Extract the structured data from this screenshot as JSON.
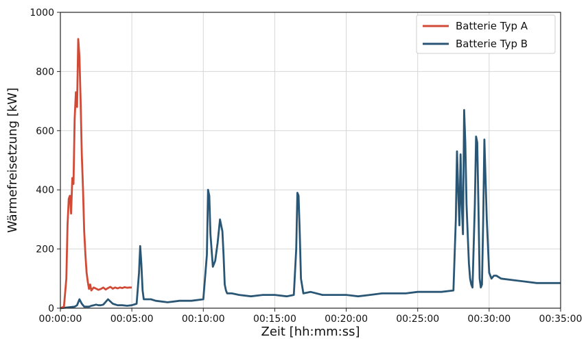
{
  "chart_data": {
    "type": "line",
    "title": "",
    "xlabel": "Zeit [hh:mm:ss]",
    "ylabel": "Wärmefreisetzung  [kW]",
    "x_unit": "seconds",
    "xlim": [
      0,
      2100
    ],
    "ylim": [
      0,
      1000
    ],
    "x_ticks": [
      0,
      300,
      600,
      900,
      1200,
      1500,
      1800,
      2100
    ],
    "x_tick_labels": [
      "00:00:00",
      "00:05:00",
      "00:10:00",
      "00:15:00",
      "00:20:00",
      "00:25:00",
      "00:30:00",
      "00:35:00"
    ],
    "y_ticks": [
      0,
      200,
      400,
      600,
      800,
      1000
    ],
    "y_tick_labels": [
      "0",
      "200",
      "400",
      "600",
      "800",
      "1000"
    ],
    "grid": true,
    "legend_position": "top-right",
    "series": [
      {
        "name": "Batterie Typ A",
        "color": "#d14a36",
        "x": [
          0,
          15,
          25,
          30,
          35,
          40,
          45,
          50,
          55,
          60,
          65,
          70,
          75,
          80,
          85,
          90,
          95,
          100,
          105,
          110,
          115,
          120,
          125,
          130,
          135,
          140,
          145,
          150,
          160,
          170,
          180,
          190,
          200,
          210,
          220,
          230,
          240,
          250,
          260,
          270,
          280,
          290,
          300
        ],
        "y": [
          0,
          5,
          100,
          280,
          370,
          380,
          320,
          440,
          420,
          640,
          730,
          680,
          910,
          850,
          700,
          520,
          400,
          260,
          180,
          120,
          90,
          65,
          80,
          60,
          65,
          70,
          68,
          66,
          62,
          65,
          70,
          63,
          68,
          72,
          66,
          70,
          67,
          70,
          68,
          71,
          69,
          70,
          70
        ]
      },
      {
        "name": "Batterie Typ B",
        "color": "#2a5675",
        "x": [
          0,
          60,
          70,
          80,
          90,
          100,
          120,
          130,
          140,
          150,
          160,
          170,
          180,
          200,
          220,
          240,
          260,
          280,
          300,
          320,
          330,
          335,
          340,
          345,
          350,
          360,
          380,
          400,
          450,
          500,
          550,
          600,
          615,
          620,
          625,
          630,
          640,
          650,
          660,
          670,
          680,
          685,
          690,
          695,
          700,
          720,
          750,
          800,
          850,
          900,
          950,
          980,
          990,
          995,
          1000,
          1005,
          1010,
          1020,
          1050,
          1100,
          1150,
          1200,
          1250,
          1300,
          1350,
          1400,
          1450,
          1500,
          1550,
          1600,
          1650,
          1660,
          1665,
          1670,
          1675,
          1680,
          1685,
          1690,
          1695,
          1700,
          1705,
          1710,
          1715,
          1720,
          1725,
          1730,
          1740,
          1745,
          1750,
          1755,
          1760,
          1765,
          1770,
          1775,
          1780,
          1790,
          1800,
          1810,
          1820,
          1830,
          1850,
          1900,
          1950,
          2000,
          2050,
          2100
        ],
        "y": [
          0,
          5,
          10,
          30,
          15,
          5,
          5,
          8,
          10,
          12,
          10,
          10,
          12,
          30,
          15,
          10,
          10,
          8,
          10,
          15,
          120,
          210,
          150,
          60,
          30,
          30,
          30,
          25,
          20,
          25,
          25,
          30,
          180,
          400,
          380,
          250,
          140,
          160,
          220,
          300,
          260,
          180,
          80,
          60,
          50,
          50,
          45,
          40,
          45,
          45,
          40,
          45,
          200,
          390,
          380,
          250,
          100,
          50,
          55,
          45,
          45,
          45,
          40,
          45,
          50,
          50,
          50,
          55,
          55,
          55,
          60,
          300,
          530,
          400,
          280,
          520,
          350,
          250,
          670,
          560,
          350,
          250,
          150,
          100,
          80,
          70,
          350,
          580,
          560,
          350,
          100,
          70,
          80,
          300,
          570,
          300,
          120,
          100,
          110,
          110,
          100,
          95,
          90,
          85,
          85,
          85
        ]
      }
    ]
  }
}
